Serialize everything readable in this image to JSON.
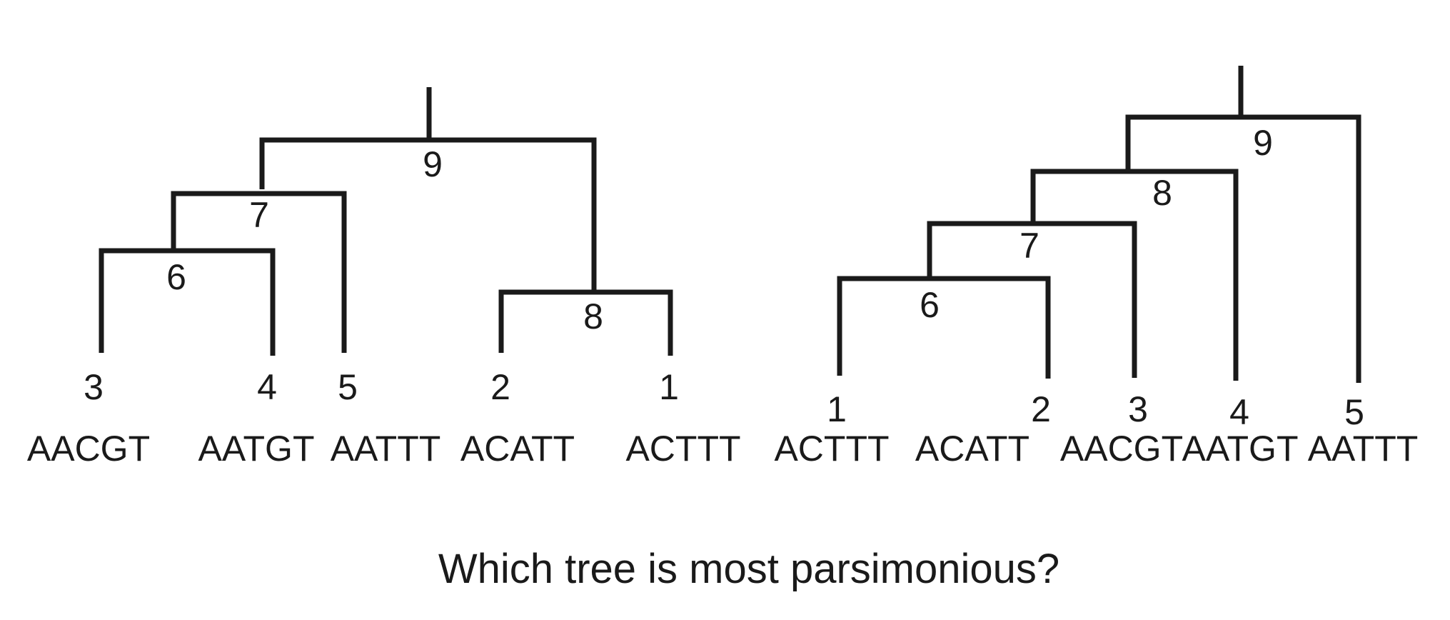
{
  "question": "Which tree is most parsimonious?",
  "trees": [
    {
      "leaves": [
        {
          "node": "3",
          "sequence": "AACGT"
        },
        {
          "node": "4",
          "sequence": "AATGT"
        },
        {
          "node": "5",
          "sequence": "AATTT"
        },
        {
          "node": "2",
          "sequence": "ACATT"
        },
        {
          "node": "1",
          "sequence": "ACTTT"
        }
      ],
      "internal_nodes": [
        "6",
        "7",
        "8",
        "9"
      ]
    },
    {
      "leaves": [
        {
          "node": "1",
          "sequence": "ACTTT"
        },
        {
          "node": "2",
          "sequence": "ACATT"
        },
        {
          "node": "3",
          "sequence": "AACGT"
        },
        {
          "node": "4",
          "sequence": "AATGT"
        },
        {
          "node": "5",
          "sequence": "AATTT"
        }
      ],
      "internal_nodes": [
        "6",
        "7",
        "8",
        "9"
      ]
    }
  ]
}
